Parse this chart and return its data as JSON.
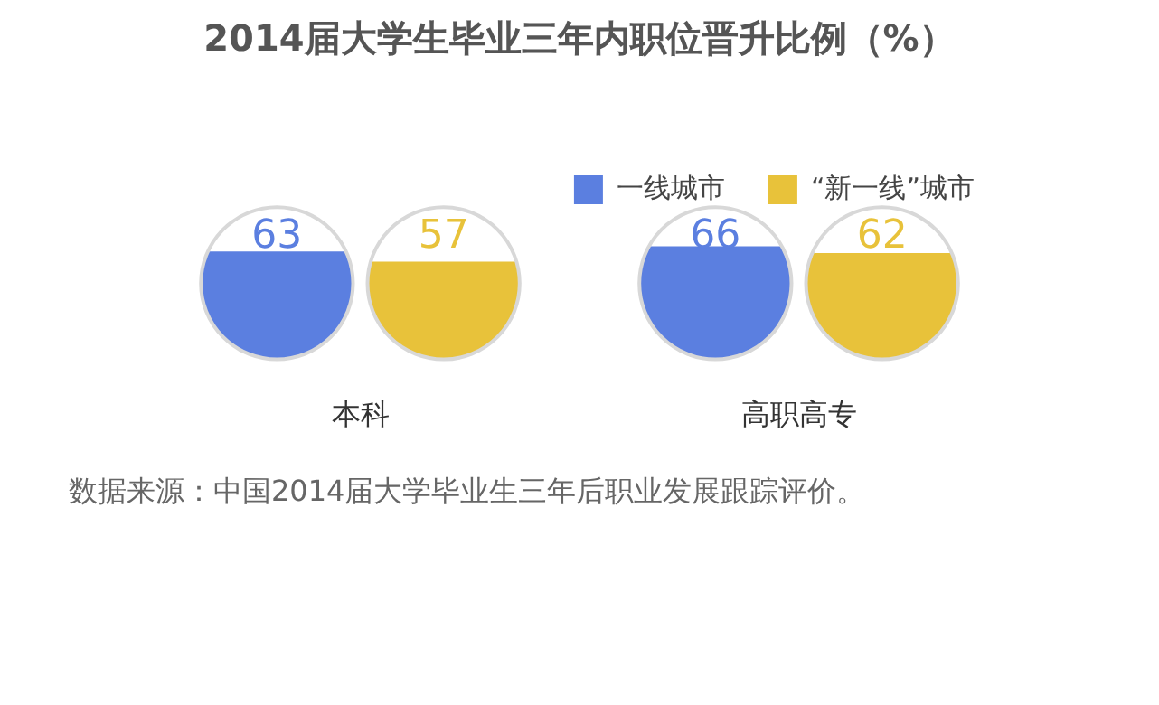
{
  "chart_data": {
    "type": "bar",
    "title": "2014届大学生毕业三年内职位晋升比例（%）",
    "categories": [
      "本科",
      "高职高专"
    ],
    "series": [
      {
        "name": "一线城市",
        "color": "#5b7fe0",
        "values": [
          63,
          66
        ]
      },
      {
        "name": "“新一线”城市",
        "color": "#e8c23a",
        "values": [
          57,
          62
        ]
      }
    ],
    "data_labels": true,
    "legend": "top right",
    "annotations": [
      "数据来源：中国2014届大学毕业生三年后职业发展跟踪评价。"
    ]
  }
}
